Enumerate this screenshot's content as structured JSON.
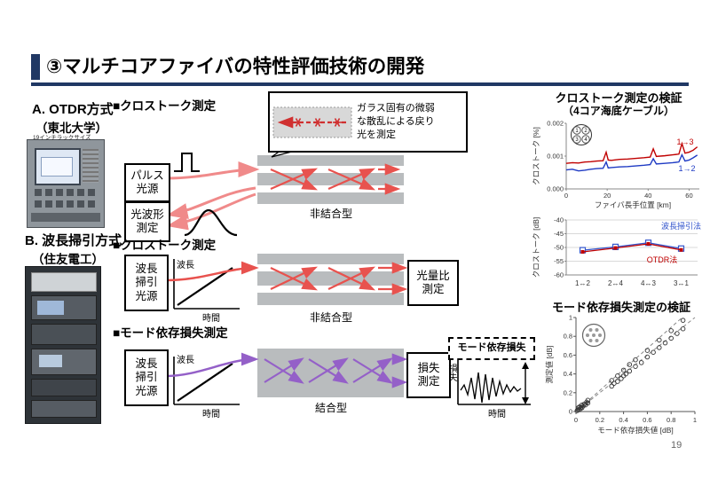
{
  "slide": {
    "title": "③マルチコアファイバの特性評価技術の開発",
    "page_number": "19"
  },
  "left": {
    "a_heading": "A. OTDR方式",
    "a_sub": "（東北大学）",
    "a_photo_caption": "19インチラックサイズ",
    "b_heading": "B. 波長掃引方式",
    "b_sub": "（住友電工）"
  },
  "diagram": {
    "xtalk_measure_a": "■クロストーク測定",
    "xtalk_measure_b": "■クロストーク測定",
    "mdl_measure": "■モード依存損失測定",
    "pulse_source": "パルス\n光源",
    "waveform_meas": "光波形\n測定",
    "sweep_source": "波長\n掃引\n光源",
    "ratio_meas": "光量比\n測定",
    "loss_meas": "損失\n測定",
    "mdl_tag": "モード依存損失",
    "callout": "ガラス固有の微弱\nな散乱による戻り\n光を測定",
    "uncoupled": "非結合型",
    "coupled": "結合型",
    "wavelength": "波長",
    "time": "時間",
    "loss": "損失"
  },
  "chart_data": [
    {
      "type": "line",
      "title": "クロストーク測定の検証",
      "subtitle": "（4コア海底ケーブル）",
      "ylabel": "クロストーク [%]",
      "xlabel": "ファイバ長手位置 [km]",
      "xlim": [
        0,
        65
      ],
      "ylim": [
        0,
        0.002
      ],
      "xticks": [
        0,
        20,
        40,
        60
      ],
      "yticks": [
        0,
        0.001,
        0.002
      ],
      "ytick_labels": [
        "0.000",
        "0.001",
        "0.002"
      ],
      "core_icon": [
        "1",
        "2",
        "3",
        "4"
      ],
      "x": [
        0,
        3,
        6,
        9,
        12,
        15,
        18,
        19.5,
        20.5,
        22,
        26,
        30,
        34,
        38,
        41,
        42.5,
        44,
        48,
        52,
        55,
        56.5,
        58,
        60,
        62,
        64
      ],
      "series": [
        {
          "name": "1→3",
          "color": "#c00000",
          "values": [
            0.00078,
            0.0008,
            0.00079,
            0.00082,
            0.00083,
            0.00085,
            0.00086,
            0.00112,
            0.00088,
            0.00087,
            0.0009,
            0.00091,
            0.00093,
            0.00095,
            0.00097,
            0.00122,
            0.00099,
            0.00101,
            0.00104,
            0.00106,
            0.00138,
            0.00109,
            0.00112,
            0.00118,
            0.00128
          ]
        },
        {
          "name": "1→2",
          "color": "#1f3bc4",
          "values": [
            0.00058,
            0.0006,
            0.00055,
            0.00057,
            0.0006,
            0.00062,
            0.00063,
            0.00082,
            0.00064,
            0.00065,
            0.00067,
            0.00068,
            0.0007,
            0.00072,
            0.00074,
            0.00092,
            0.00076,
            0.00078,
            0.0008,
            0.00082,
            0.00104,
            0.00085,
            0.00088,
            0.00095,
            0.00103
          ]
        }
      ],
      "legend_position": "right"
    },
    {
      "type": "line",
      "ylabel": "クロストーク [dB]",
      "categories": [
        "1↔2",
        "2↔4",
        "4↔3",
        "3↔1"
      ],
      "ylim": [
        -60,
        -40
      ],
      "yticks": [
        -40,
        -45,
        -50,
        -55,
        -60
      ],
      "grid": true,
      "series": [
        {
          "name": "波長掃引法",
          "color": "#3355cc",
          "values": [
            -51.0,
            -49.8,
            -48.3,
            -50.4
          ]
        },
        {
          "name": "OTDR法",
          "color": "#c00000",
          "values": [
            -51.6,
            -50.2,
            -48.7,
            -50.9
          ]
        }
      ]
    },
    {
      "type": "scatter",
      "title": "モード依存損失測定の検証",
      "ylabel": "測定値 [dB]",
      "xlabel": "モード依存損失値 [dB]",
      "xlim": [
        0,
        1
      ],
      "ylim": [
        0,
        1
      ],
      "xticks": [
        0,
        0.2,
        0.4,
        0.6,
        0.8,
        1
      ],
      "yticks": [
        0,
        0.2,
        0.4,
        0.6,
        0.8,
        1
      ],
      "guide_lines": [
        {
          "slope": 1,
          "intercept": 0
        },
        {
          "slope": 1.12,
          "intercept": 0
        }
      ],
      "points": [
        [
          0.01,
          0.01
        ],
        [
          0.02,
          0.02
        ],
        [
          0.02,
          0.04
        ],
        [
          0.03,
          0.02
        ],
        [
          0.03,
          0.05
        ],
        [
          0.04,
          0.04
        ],
        [
          0.05,
          0.04
        ],
        [
          0.05,
          0.07
        ],
        [
          0.06,
          0.06
        ],
        [
          0.07,
          0.08
        ],
        [
          0.08,
          0.07
        ],
        [
          0.09,
          0.1
        ],
        [
          0.1,
          0.09
        ],
        [
          0.1,
          0.12
        ],
        [
          0.3,
          0.27
        ],
        [
          0.3,
          0.33
        ],
        [
          0.32,
          0.3
        ],
        [
          0.35,
          0.32
        ],
        [
          0.35,
          0.38
        ],
        [
          0.38,
          0.35
        ],
        [
          0.4,
          0.38
        ],
        [
          0.4,
          0.44
        ],
        [
          0.42,
          0.4
        ],
        [
          0.45,
          0.43
        ],
        [
          0.45,
          0.5
        ],
        [
          0.5,
          0.48
        ],
        [
          0.5,
          0.55
        ],
        [
          0.55,
          0.52
        ],
        [
          0.6,
          0.58
        ],
        [
          0.6,
          0.65
        ],
        [
          0.65,
          0.63
        ],
        [
          0.7,
          0.68
        ],
        [
          0.7,
          0.76
        ],
        [
          0.75,
          0.73
        ],
        [
          0.8,
          0.78
        ],
        [
          0.8,
          0.86
        ],
        [
          0.85,
          0.83
        ],
        [
          0.9,
          0.88
        ],
        [
          0.9,
          0.97
        ]
      ]
    }
  ]
}
